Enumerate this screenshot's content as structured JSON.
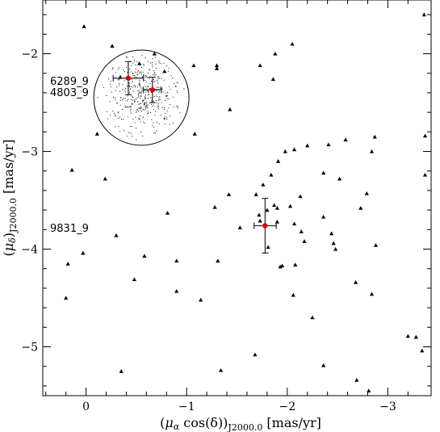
{
  "chart_data": {
    "type": "scatter",
    "title": "",
    "xlabel": "(μα cos(δ))J2000.0 [mas/yr]",
    "ylabel": "(μδ)J2000.0 [mas/yr]",
    "xlabel_parts": {
      "pre": "(",
      "mu": "μ",
      "mu_sub": "α",
      "mid": " cos(δ))",
      "sub": "J2000.0",
      "post": " [mas/yr]"
    },
    "ylabel_parts": {
      "pre": "(",
      "mu": "μ",
      "mu_sub": "δ",
      "mid": ")",
      "sub": "J2000.0",
      "post": " [mas/yr]"
    },
    "xlim": [
      0.43,
      -3.43
    ],
    "ylim": [
      -5.5,
      -1.45
    ],
    "x_ticks": [
      0,
      -1,
      -2,
      -3
    ],
    "x_tick_labels": [
      "0",
      "−1",
      "−2",
      "−3"
    ],
    "y_ticks": [
      -2,
      -3,
      -4,
      -5
    ],
    "y_tick_labels": [
      "−2",
      "−3",
      "−4",
      "−5"
    ],
    "grid": false,
    "field_stars": {
      "marker": "triangle",
      "color": "#000000",
      "points": [
        [
          0.02,
          -1.72
        ],
        [
          -0.26,
          -1.92
        ],
        [
          -0.34,
          -2.24
        ],
        [
          -0.53,
          -2.1
        ],
        [
          -0.68,
          -2.0
        ],
        [
          -0.78,
          -2.18
        ],
        [
          -1.07,
          -2.12
        ],
        [
          -1.08,
          -2.82
        ],
        [
          -1.3,
          -2.12
        ],
        [
          -1.3,
          -2.15
        ],
        [
          -1.43,
          -2.57
        ],
        [
          -1.73,
          -2.12
        ],
        [
          -1.86,
          -2.26
        ],
        [
          -1.88,
          -2.0
        ],
        [
          -2.05,
          -1.9
        ],
        [
          -0.11,
          -2.82
        ],
        [
          0.14,
          -3.19
        ],
        [
          -0.19,
          -3.28
        ],
        [
          -0.81,
          -3.63
        ],
        [
          -1.28,
          -3.57
        ],
        [
          -1.42,
          -3.44
        ],
        [
          -1.53,
          -3.78
        ],
        [
          -1.69,
          -3.44
        ],
        [
          -1.72,
          -3.65
        ],
        [
          -1.73,
          -3.71
        ],
        [
          -1.76,
          -3.34
        ],
        [
          -1.8,
          -3.6
        ],
        [
          -1.81,
          -3.98
        ],
        [
          -1.84,
          -3.24
        ],
        [
          -1.87,
          -3.55
        ],
        [
          -1.9,
          -3.58
        ],
        [
          -1.9,
          -3.72
        ],
        [
          -1.91,
          -3.1
        ],
        [
          -1.95,
          -4.17
        ],
        [
          -1.98,
          -3.0
        ],
        [
          -2.03,
          -3.56
        ],
        [
          -2.07,
          -2.98
        ],
        [
          -2.07,
          -3.74
        ],
        [
          -2.13,
          -3.46
        ],
        [
          -2.14,
          -3.82
        ],
        [
          -2.17,
          -3.92
        ],
        [
          -2.2,
          -2.94
        ],
        [
          -2.36,
          -3.22
        ],
        [
          -2.36,
          -3.67
        ],
        [
          -2.41,
          -2.93
        ],
        [
          -2.44,
          -3.84
        ],
        [
          -2.46,
          -3.94
        ],
        [
          -2.48,
          -4.0
        ],
        [
          -2.52,
          -3.28
        ],
        [
          -2.58,
          -2.88
        ],
        [
          -2.73,
          -3.58
        ],
        [
          -2.79,
          -3.43
        ],
        [
          -2.84,
          -3.0
        ],
        [
          -2.87,
          -2.85
        ],
        [
          -2.88,
          -3.96
        ],
        [
          -3.36,
          -1.6
        ],
        [
          -3.37,
          -2.84
        ],
        [
          -3.37,
          -3.24
        ],
        [
          -0.3,
          -3.86
        ],
        [
          -0.58,
          -4.07
        ],
        [
          -0.9,
          -4.12
        ],
        [
          0.18,
          -4.15
        ],
        [
          0.03,
          -4.04
        ],
        [
          -0.48,
          -4.31
        ],
        [
          -0.9,
          -4.43
        ],
        [
          -1.14,
          -4.52
        ],
        [
          -1.31,
          -4.12
        ],
        [
          -1.93,
          -4.18
        ],
        [
          -2.08,
          -4.16
        ],
        [
          -2.06,
          -4.47
        ],
        [
          -2.25,
          -4.7
        ],
        [
          -2.68,
          -4.34
        ],
        [
          -2.84,
          -4.46
        ],
        [
          -3.2,
          -4.89
        ],
        [
          -3.28,
          -4.9
        ],
        [
          0.2,
          -4.5
        ],
        [
          -0.35,
          -5.25
        ],
        [
          -1.34,
          -5.24
        ],
        [
          -1.68,
          -5.08
        ],
        [
          -2.36,
          -5.19
        ],
        [
          -2.69,
          -5.34
        ],
        [
          -2.81,
          -5.45
        ],
        [
          -3.34,
          -5.04
        ]
      ]
    },
    "inset_circle": {
      "center": [
        -0.55,
        -2.45
      ],
      "radius": 0.48
    },
    "members": [
      {
        "name": "6289_9",
        "label": "6289_9",
        "x": -0.42,
        "y": -2.25,
        "xerr": 0.15,
        "yerr": 0.17,
        "color": "#e00000"
      },
      {
        "name": "4803_9",
        "label": "4803_9",
        "x": -0.66,
        "y": -2.37,
        "xerr": 0.09,
        "yerr": 0.13,
        "color": "#e00000"
      },
      {
        "name": "9831_9",
        "label": "9831_9",
        "x": -1.78,
        "y": -3.76,
        "xerr": 0.11,
        "yerr": 0.28,
        "color": "#e00000"
      }
    ]
  }
}
